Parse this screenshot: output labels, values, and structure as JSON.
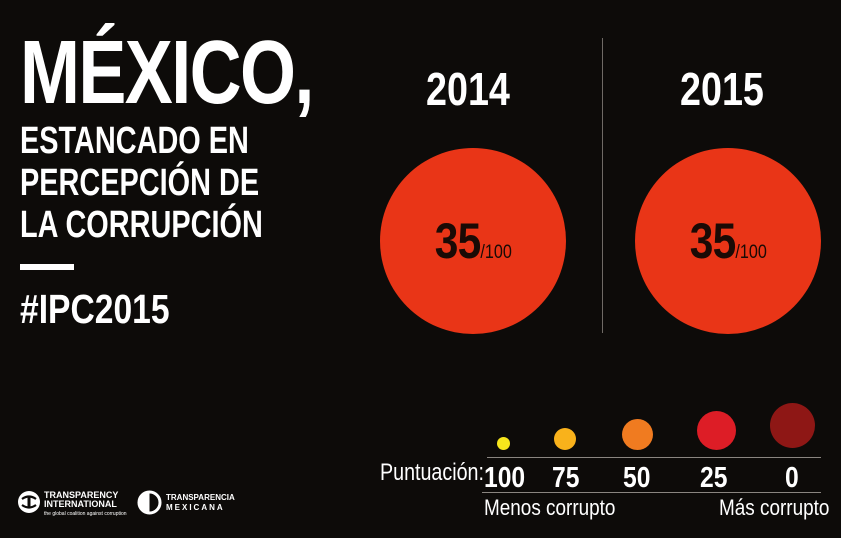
{
  "title": {
    "main": "MÉXICO,",
    "lines": [
      "ESTANCADO EN",
      "PERCEPCIÓN DE",
      "LA CORRUPCIÓN"
    ],
    "hashtag": "#IPC2015"
  },
  "years": [
    {
      "year": "2014",
      "score": "35",
      "denominator": "/100"
    },
    {
      "year": "2015",
      "score": "35",
      "denominator": "/100"
    }
  ],
  "legend": {
    "label": "Puntuación:",
    "items": [
      {
        "value": "100",
        "color": "#f7e61c"
      },
      {
        "value": "75",
        "color": "#f9b21b"
      },
      {
        "value": "50",
        "color": "#f07b20"
      },
      {
        "value": "25",
        "color": "#dd1d26"
      },
      {
        "value": "0",
        "color": "#8e1715"
      }
    ],
    "less_corrupt": "Menos corrupto",
    "more_corrupt": "Más corrupto"
  },
  "logos": {
    "ti_line1": "TRANSPARENCY",
    "ti_line2": "INTERNATIONAL",
    "ti_tagline": "the global coalition against corruption",
    "tm_line1": "TRANSPARENCIA",
    "tm_line2": "MEXICANA"
  },
  "colors": {
    "background": "#0d0b09",
    "circle": "#e93517",
    "score_text": "#1a0a05"
  }
}
